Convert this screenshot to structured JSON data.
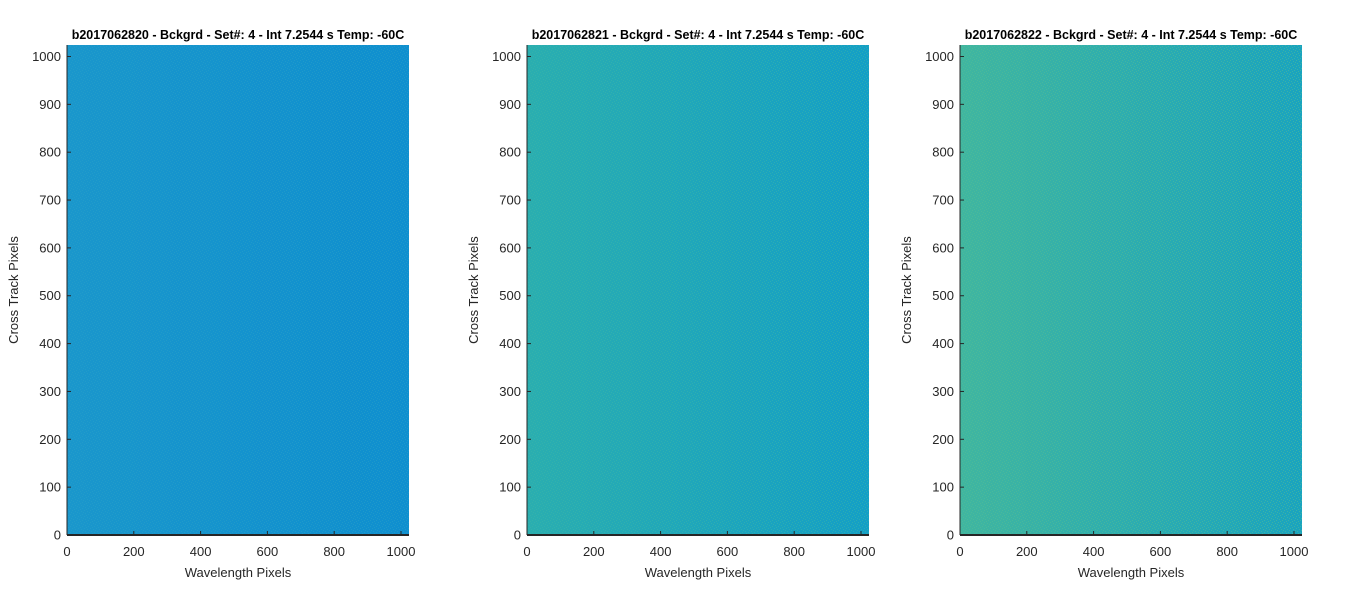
{
  "chart_data": [
    {
      "type": "heatmap",
      "title": "b2017062820 - Bckgrd - Set#: 4 - Int 7.2544 s Temp: -60C",
      "xlabel": "Wavelength Pixels",
      "ylabel": "Cross Track Pixels",
      "xlim": [
        0,
        1024
      ],
      "ylim": [
        0,
        1024
      ],
      "xticks": [
        0,
        200,
        400,
        600,
        800,
        1000
      ],
      "yticks": [
        0,
        100,
        200,
        300,
        400,
        500,
        600,
        700,
        800,
        900,
        1000
      ],
      "grid": false,
      "colormap": "parula",
      "colors": {
        "left": "#1a97cc",
        "right": "#0f8fcf",
        "noise": "#2aa0c8"
      }
    },
    {
      "type": "heatmap",
      "title": "b2017062821 - Bckgrd - Set#: 4 - Int 7.2544 s Temp: -60C",
      "xlabel": "Wavelength Pixels",
      "ylabel": "Cross Track Pixels",
      "xlim": [
        0,
        1024
      ],
      "ylim": [
        0,
        1024
      ],
      "xticks": [
        0,
        200,
        400,
        600,
        800,
        1000
      ],
      "yticks": [
        0,
        100,
        200,
        300,
        400,
        500,
        600,
        700,
        800,
        900,
        1000
      ],
      "grid": false,
      "colormap": "parula",
      "colors": {
        "left": "#2aaeb0",
        "right": "#149fc6",
        "noise": "#3cb5a8"
      }
    },
    {
      "type": "heatmap",
      "title": "b2017062822 - Bckgrd - Set#: 4 - Int 7.2544 s Temp: -60C",
      "xlabel": "Wavelength Pixels",
      "ylabel": "Cross Track Pixels",
      "xlim": [
        0,
        1024
      ],
      "ylim": [
        0,
        1024
      ],
      "xticks": [
        0,
        200,
        400,
        600,
        800,
        1000
      ],
      "yticks": [
        0,
        100,
        200,
        300,
        400,
        500,
        600,
        700,
        800,
        900,
        1000
      ],
      "grid": false,
      "colormap": "parula",
      "colors": {
        "left": "#40b6a0",
        "right": "#1aa4bf",
        "noise": "#55bd94"
      }
    }
  ]
}
